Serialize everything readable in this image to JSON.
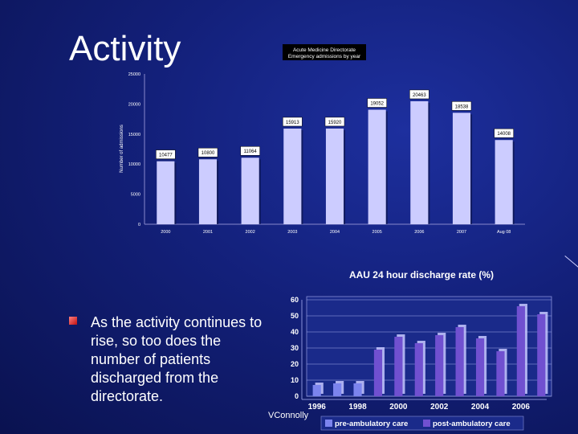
{
  "slide": {
    "title": "Activity",
    "bullet": "As the activity continues to rise, so too does the number of patients discharged from the directorate.",
    "footer": "VConnolly"
  },
  "chart_data": [
    {
      "type": "bar",
      "title": "Acute Medicine Directorate",
      "subtitle": "Emergency admissions by year",
      "ylabel": "Number of admissions",
      "xlabel": "",
      "categories": [
        "2000",
        "2001",
        "2002",
        "2003",
        "2004",
        "2005",
        "2006",
        "2007",
        "Aug 08"
      ],
      "values": [
        10477,
        10800,
        11064,
        15913,
        15920,
        19052,
        20463,
        18538,
        14008
      ],
      "data_labels": [
        "10477",
        "10800",
        "11064",
        "15913",
        "15920",
        "19052",
        "20463",
        "18538",
        "14008"
      ],
      "ylim": [
        0,
        25000
      ],
      "yticks": [
        "0",
        "5000",
        "10000",
        "15000",
        "20000",
        "25000"
      ],
      "legend": "none",
      "grid": false,
      "bar_color": "#ccccff"
    },
    {
      "type": "bar",
      "title": "AAU 24 hour discharge rate (%)",
      "xlabel": "",
      "ylabel": "",
      "x": [
        1996,
        1997,
        1998,
        1999,
        2000,
        2001,
        2002,
        2003,
        2004,
        2005,
        2006,
        2007
      ],
      "xtick_labels": [
        "1996",
        "1998",
        "2000",
        "2002",
        "2004",
        "2006"
      ],
      "yticks": [
        "0",
        "10",
        "20",
        "30",
        "40",
        "50",
        "60"
      ],
      "ylim": [
        0,
        60
      ],
      "series": [
        {
          "name": "pre-ambulatory care",
          "color": "#7c84ee",
          "values": [
            7,
            8,
            8,
            null,
            null,
            null,
            null,
            null,
            null,
            null,
            null,
            null
          ]
        },
        {
          "name": "post-ambulatory care",
          "color": "#7050d0",
          "values": [
            null,
            null,
            null,
            29,
            37,
            33,
            38,
            43,
            36,
            28,
            56,
            51
          ]
        }
      ],
      "legend": "bottom",
      "grid": true
    }
  ]
}
